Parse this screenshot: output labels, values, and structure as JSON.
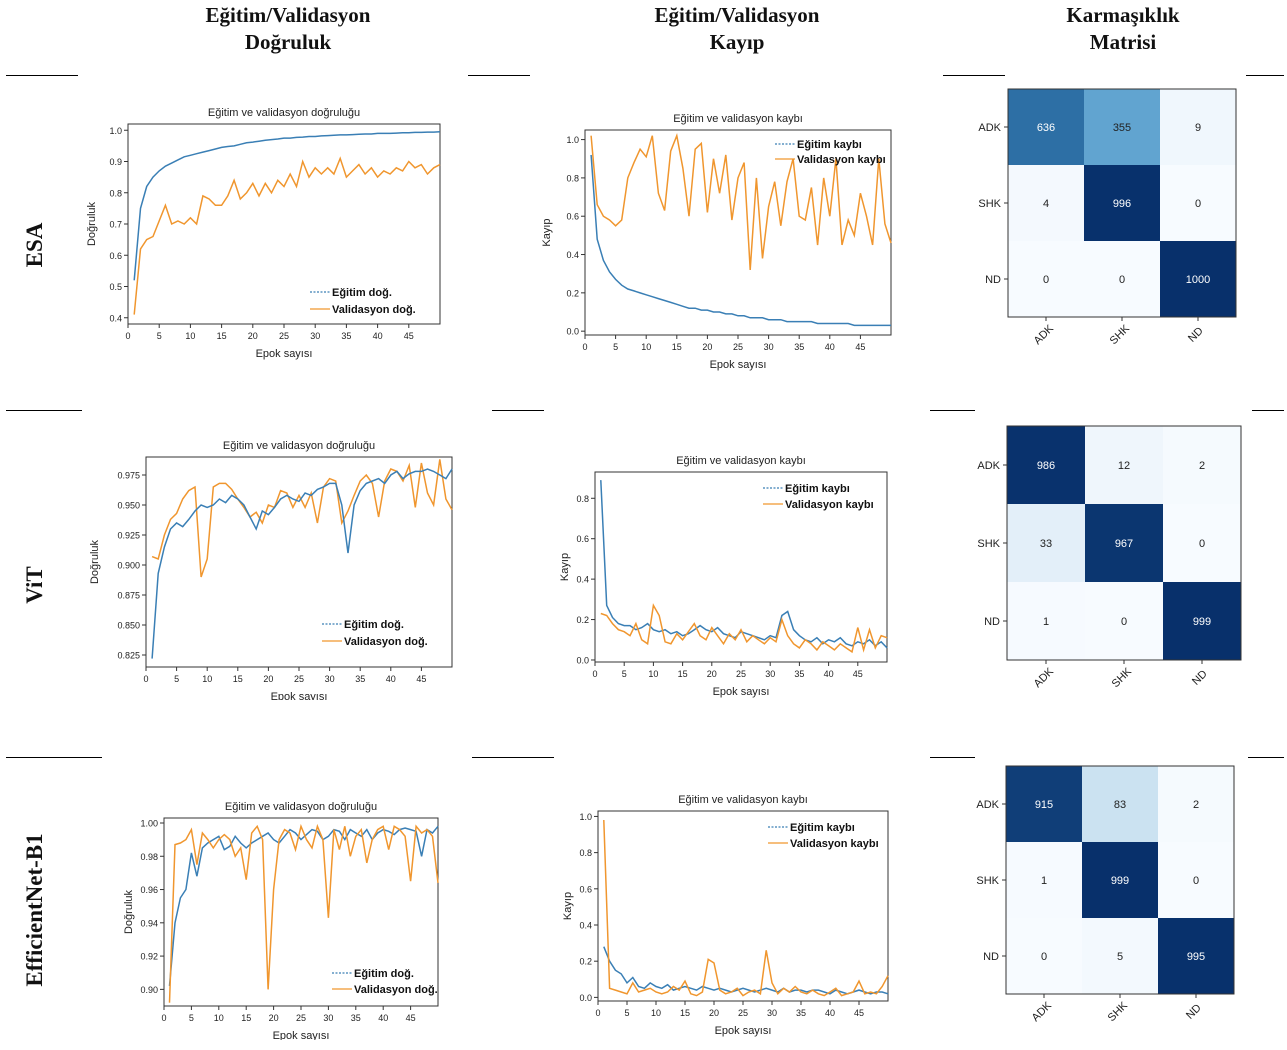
{
  "columns": [
    {
      "line1": "Eğitim/Validasyon",
      "line2": "Doğruluk"
    },
    {
      "line1": "Eğitim/Validasyon",
      "line2": "Kayıp"
    },
    {
      "line1": "Karmaşıklık",
      "line2": "Matrisi"
    }
  ],
  "rows": [
    "ESA",
    "ViT",
    "EfficientNet-B1"
  ],
  "colors": {
    "train": "#3a7fb5",
    "val": "#f0962e"
  },
  "chart_data": [
    {
      "model": "ESA",
      "type": "line",
      "title": "Eğitim ve validasyon doğruluğu",
      "xlabel": "Epok sayısı",
      "ylabel": "Doğruluk",
      "xlim": [
        0,
        50
      ],
      "ylim": [
        0.38,
        1.02
      ],
      "xticks": [
        0,
        5,
        10,
        15,
        20,
        25,
        30,
        35,
        40,
        45
      ],
      "yticks": [
        0.4,
        0.5,
        0.6,
        0.7,
        0.8,
        0.9,
        1.0
      ],
      "legend_position": "lower-right",
      "series": [
        {
          "name": "Eğitim doğ.",
          "values": [
            0.52,
            0.75,
            0.82,
            0.85,
            0.87,
            0.885,
            0.895,
            0.905,
            0.915,
            0.92,
            0.925,
            0.93,
            0.935,
            0.94,
            0.945,
            0.948,
            0.95,
            0.955,
            0.96,
            0.962,
            0.965,
            0.968,
            0.97,
            0.972,
            0.975,
            0.975,
            0.977,
            0.978,
            0.98,
            0.98,
            0.982,
            0.983,
            0.984,
            0.985,
            0.985,
            0.986,
            0.987,
            0.988,
            0.988,
            0.99,
            0.99,
            0.99,
            0.991,
            0.992,
            0.992,
            0.993,
            0.993,
            0.994,
            0.994,
            0.995
          ]
        },
        {
          "name": "Validasyon doğ.",
          "values": [
            0.41,
            0.62,
            0.65,
            0.66,
            0.71,
            0.76,
            0.7,
            0.71,
            0.7,
            0.72,
            0.7,
            0.79,
            0.78,
            0.76,
            0.76,
            0.79,
            0.84,
            0.78,
            0.8,
            0.83,
            0.79,
            0.83,
            0.8,
            0.84,
            0.82,
            0.86,
            0.82,
            0.9,
            0.85,
            0.88,
            0.86,
            0.88,
            0.86,
            0.91,
            0.85,
            0.87,
            0.89,
            0.86,
            0.88,
            0.85,
            0.87,
            0.86,
            0.88,
            0.87,
            0.9,
            0.88,
            0.89,
            0.86,
            0.88,
            0.89
          ]
        }
      ]
    },
    {
      "model": "ESA",
      "type": "line",
      "title": "Eğitim ve validasyon kaybı",
      "xlabel": "Epok sayısı",
      "ylabel": "Kayıp",
      "xlim": [
        0,
        50
      ],
      "ylim": [
        -0.02,
        1.05
      ],
      "xticks": [
        0,
        5,
        10,
        15,
        20,
        25,
        30,
        35,
        40,
        45
      ],
      "yticks": [
        0.0,
        0.2,
        0.4,
        0.6,
        0.8,
        1.0
      ],
      "legend_position": "top-right",
      "series": [
        {
          "name": "Eğitim kaybı",
          "values": [
            0.92,
            0.48,
            0.37,
            0.31,
            0.27,
            0.24,
            0.22,
            0.21,
            0.2,
            0.19,
            0.18,
            0.17,
            0.16,
            0.15,
            0.14,
            0.13,
            0.12,
            0.12,
            0.11,
            0.11,
            0.1,
            0.1,
            0.09,
            0.09,
            0.08,
            0.08,
            0.07,
            0.07,
            0.07,
            0.06,
            0.06,
            0.06,
            0.05,
            0.05,
            0.05,
            0.05,
            0.05,
            0.04,
            0.04,
            0.04,
            0.04,
            0.04,
            0.04,
            0.03,
            0.03,
            0.03,
            0.03,
            0.03,
            0.03,
            0.03
          ]
        },
        {
          "name": "Validasyon kaybı",
          "values": [
            1.02,
            0.66,
            0.6,
            0.58,
            0.55,
            0.58,
            0.8,
            0.88,
            0.95,
            0.91,
            1.02,
            0.72,
            0.63,
            0.94,
            1.02,
            0.85,
            0.6,
            0.95,
            0.98,
            0.62,
            0.9,
            0.72,
            0.92,
            0.58,
            0.8,
            0.88,
            0.32,
            0.8,
            0.38,
            0.65,
            0.78,
            0.55,
            0.78,
            0.9,
            0.6,
            0.58,
            0.75,
            0.45,
            0.8,
            0.6,
            0.9,
            0.45,
            0.58,
            0.5,
            0.72,
            0.6,
            0.45,
            0.9,
            0.56,
            0.46
          ]
        }
      ]
    },
    {
      "model": "ESA",
      "type": "heatmap",
      "labels": [
        "ADK",
        "SHK",
        "ND"
      ],
      "matrix": [
        [
          636,
          355,
          9
        ],
        [
          4,
          996,
          0
        ],
        [
          0,
          0,
          1000
        ]
      ]
    },
    {
      "model": "ViT",
      "type": "line",
      "title": "Eğitim ve validasyon doğruluğu",
      "xlabel": "Epok sayısı",
      "ylabel": "Doğruluk",
      "xlim": [
        0,
        50
      ],
      "ylim": [
        0.815,
        0.99
      ],
      "xticks": [
        0,
        5,
        10,
        15,
        20,
        25,
        30,
        35,
        40,
        45
      ],
      "yticks": [
        0.825,
        0.85,
        0.875,
        0.9,
        0.925,
        0.95,
        0.975
      ],
      "legend_position": "lower-right",
      "series": [
        {
          "name": "Eğitim doğ.",
          "values": [
            0.822,
            0.893,
            0.915,
            0.93,
            0.935,
            0.932,
            0.938,
            0.945,
            0.95,
            0.948,
            0.95,
            0.955,
            0.952,
            0.958,
            0.955,
            0.95,
            0.94,
            0.93,
            0.945,
            0.942,
            0.948,
            0.955,
            0.958,
            0.955,
            0.953,
            0.96,
            0.958,
            0.963,
            0.965,
            0.968,
            0.968,
            0.95,
            0.91,
            0.95,
            0.962,
            0.968,
            0.97,
            0.972,
            0.968,
            0.975,
            0.978,
            0.972,
            0.976,
            0.978,
            0.978,
            0.98,
            0.978,
            0.975,
            0.972,
            0.98
          ]
        },
        {
          "name": "Validasyon doğ.",
          "values": [
            0.907,
            0.905,
            0.925,
            0.938,
            0.943,
            0.955,
            0.962,
            0.965,
            0.89,
            0.905,
            0.965,
            0.968,
            0.968,
            0.963,
            0.955,
            0.948,
            0.94,
            0.944,
            0.935,
            0.95,
            0.948,
            0.962,
            0.96,
            0.948,
            0.958,
            0.948,
            0.96,
            0.935,
            0.965,
            0.972,
            0.97,
            0.935,
            0.945,
            0.958,
            0.97,
            0.975,
            0.968,
            0.94,
            0.97,
            0.98,
            0.978,
            0.97,
            0.983,
            0.948,
            0.985,
            0.96,
            0.95,
            0.988,
            0.955,
            0.946
          ]
        }
      ]
    },
    {
      "model": "ViT",
      "type": "line",
      "title": "Eğitim ve validasyon kaybı",
      "xlabel": "Epok sayısı",
      "ylabel": "Kayıp",
      "xlim": [
        0,
        50
      ],
      "ylim": [
        -0.01,
        0.93
      ],
      "xticks": [
        0,
        5,
        10,
        15,
        20,
        25,
        30,
        35,
        40,
        45
      ],
      "yticks": [
        0.0,
        0.2,
        0.4,
        0.6,
        0.8
      ],
      "legend_position": "top-right",
      "series": [
        {
          "name": "Eğitim kaybı",
          "values": [
            0.89,
            0.27,
            0.21,
            0.18,
            0.17,
            0.17,
            0.15,
            0.16,
            0.18,
            0.15,
            0.14,
            0.15,
            0.13,
            0.14,
            0.12,
            0.13,
            0.15,
            0.17,
            0.15,
            0.14,
            0.16,
            0.13,
            0.12,
            0.11,
            0.14,
            0.13,
            0.12,
            0.11,
            0.1,
            0.12,
            0.11,
            0.22,
            0.24,
            0.15,
            0.12,
            0.1,
            0.09,
            0.11,
            0.08,
            0.1,
            0.09,
            0.11,
            0.08,
            0.07,
            0.09,
            0.08,
            0.1,
            0.07,
            0.09,
            0.06
          ]
        },
        {
          "name": "Validasyon kaybı",
          "values": [
            0.23,
            0.22,
            0.18,
            0.15,
            0.14,
            0.12,
            0.18,
            0.1,
            0.08,
            0.27,
            0.22,
            0.09,
            0.08,
            0.13,
            0.1,
            0.14,
            0.18,
            0.12,
            0.1,
            0.16,
            0.12,
            0.08,
            0.13,
            0.1,
            0.15,
            0.09,
            0.12,
            0.1,
            0.08,
            0.11,
            0.09,
            0.2,
            0.12,
            0.08,
            0.06,
            0.1,
            0.08,
            0.05,
            0.09,
            0.07,
            0.05,
            0.08,
            0.06,
            0.04,
            0.16,
            0.05,
            0.15,
            0.06,
            0.12,
            0.11
          ]
        }
      ]
    },
    {
      "model": "ViT",
      "type": "heatmap",
      "labels": [
        "ADK",
        "SHK",
        "ND"
      ],
      "matrix": [
        [
          986,
          12,
          2
        ],
        [
          33,
          967,
          0
        ],
        [
          1,
          0,
          999
        ]
      ]
    },
    {
      "model": "EfficientNet-B1",
      "type": "line",
      "title": "Eğitim ve validasyon doğruluğu",
      "xlabel": "Epok sayısı",
      "ylabel": "Doğruluk",
      "xlim": [
        0,
        50
      ],
      "ylim": [
        0.89,
        1.003
      ],
      "xticks": [
        0,
        5,
        10,
        15,
        20,
        25,
        30,
        35,
        40,
        45
      ],
      "yticks": [
        0.9,
        0.92,
        0.94,
        0.96,
        0.98,
        1.0
      ],
      "legend_position": "lower-right",
      "series": [
        {
          "name": "Eğitim doğ.",
          "values": [
            0.902,
            0.94,
            0.955,
            0.96,
            0.982,
            0.968,
            0.985,
            0.988,
            0.99,
            0.992,
            0.984,
            0.986,
            0.992,
            0.988,
            0.985,
            0.988,
            0.99,
            0.992,
            0.994,
            0.99,
            0.988,
            0.992,
            0.996,
            0.994,
            0.99,
            0.993,
            0.996,
            0.995,
            0.99,
            0.992,
            0.996,
            0.995,
            0.99,
            0.996,
            0.994,
            0.992,
            0.996,
            0.99,
            0.994,
            0.996,
            0.995,
            0.993,
            0.996,
            0.997,
            0.996,
            0.995,
            0.98,
            0.996,
            0.994,
            0.998
          ]
        },
        {
          "name": "Validasyon doğ.",
          "values": [
            0.892,
            0.987,
            0.988,
            0.99,
            0.996,
            0.975,
            0.994,
            0.99,
            0.985,
            0.99,
            0.993,
            0.99,
            0.98,
            0.985,
            0.966,
            0.994,
            0.998,
            0.99,
            0.9,
            0.96,
            0.99,
            0.996,
            0.994,
            0.984,
            0.998,
            0.99,
            0.985,
            0.998,
            0.99,
            0.943,
            0.996,
            0.984,
            0.998,
            0.98,
            0.992,
            0.996,
            0.976,
            0.99,
            0.996,
            0.998,
            0.984,
            0.998,
            0.996,
            0.992,
            0.965,
            0.998,
            0.994,
            0.996,
            0.992,
            0.964
          ]
        }
      ]
    },
    {
      "model": "EfficientNet-B1",
      "type": "line",
      "title": "Eğitim ve validasyon kaybı",
      "xlabel": "Epok sayısı",
      "ylabel": "Kayıp",
      "xlim": [
        0,
        50
      ],
      "ylim": [
        -0.02,
        1.03
      ],
      "xticks": [
        0,
        5,
        10,
        15,
        20,
        25,
        30,
        35,
        40,
        45
      ],
      "yticks": [
        0.0,
        0.2,
        0.4,
        0.6,
        0.8,
        1.0
      ],
      "legend_position": "top-right",
      "series": [
        {
          "name": "Eğitim kaybı",
          "values": [
            0.28,
            0.2,
            0.15,
            0.13,
            0.08,
            0.11,
            0.06,
            0.05,
            0.08,
            0.06,
            0.05,
            0.07,
            0.04,
            0.05,
            0.06,
            0.05,
            0.04,
            0.06,
            0.05,
            0.04,
            0.05,
            0.04,
            0.03,
            0.04,
            0.05,
            0.04,
            0.03,
            0.04,
            0.05,
            0.04,
            0.03,
            0.05,
            0.03,
            0.04,
            0.04,
            0.03,
            0.04,
            0.04,
            0.03,
            0.02,
            0.04,
            0.03,
            0.02,
            0.03,
            0.04,
            0.03,
            0.02,
            0.03,
            0.03,
            0.02
          ]
        },
        {
          "name": "Validasyon kaybı",
          "values": [
            0.98,
            0.05,
            0.04,
            0.03,
            0.02,
            0.08,
            0.03,
            0.04,
            0.05,
            0.03,
            0.02,
            0.03,
            0.06,
            0.04,
            0.09,
            0.02,
            0.01,
            0.03,
            0.21,
            0.19,
            0.04,
            0.02,
            0.03,
            0.05,
            0.01,
            0.03,
            0.04,
            0.02,
            0.26,
            0.08,
            0.02,
            0.05,
            0.03,
            0.06,
            0.03,
            0.02,
            0.04,
            0.02,
            0.01,
            0.03,
            0.05,
            0.01,
            0.02,
            0.03,
            0.09,
            0.02,
            0.03,
            0.02,
            0.06,
            0.12
          ]
        }
      ]
    },
    {
      "model": "EfficientNet-B1",
      "type": "heatmap",
      "labels": [
        "ADK",
        "SHK",
        "ND"
      ],
      "matrix": [
        [
          915,
          83,
          2
        ],
        [
          1,
          999,
          0
        ],
        [
          0,
          5,
          995
        ]
      ]
    }
  ]
}
